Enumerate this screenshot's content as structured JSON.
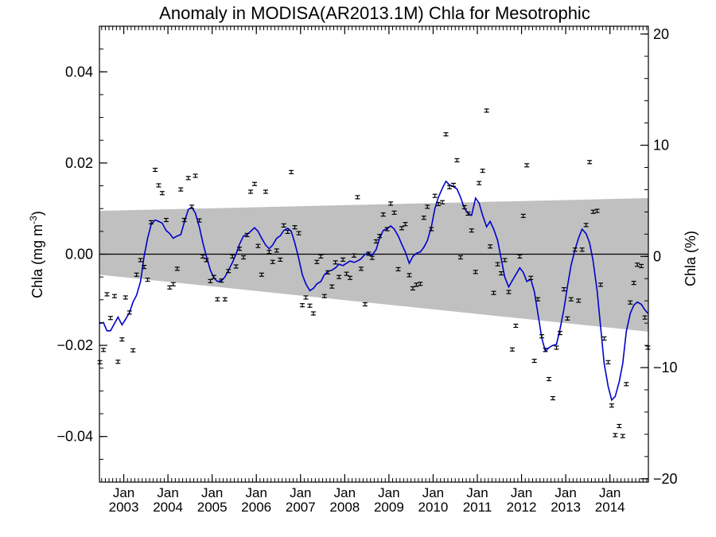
{
  "chart_data": {
    "type": "scatter",
    "title": "Anomaly in MODISA(AR2013.1M) Chla for Mesotrophic",
    "ylabel_main": "Chla (mg m",
    "ylabel_sup": "-3",
    "ylabel_close": ")",
    "ylabel_right": "Chla (%)",
    "ylim": [
      -0.05,
      0.05
    ],
    "ylim_right": [
      -20.3,
      20.7
    ],
    "xlim": [
      2002.45,
      2014.87
    ],
    "yticks": [
      -0.04,
      -0.02,
      0.0,
      0.02,
      0.04
    ],
    "yticks_labels": [
      "−0.04",
      "−0.02",
      "0.00",
      "0.02",
      "0.04"
    ],
    "yticks_right": [
      -20,
      -10,
      0,
      10,
      20
    ],
    "yticks_right_labels": [
      "−20",
      "−10",
      "0",
      "10",
      "20"
    ],
    "xticks": [
      {
        "x": 2003,
        "month": "Jan",
        "year": "2003"
      },
      {
        "x": 2004,
        "month": "Jan",
        "year": "2004"
      },
      {
        "x": 2005,
        "month": "Jan",
        "year": "2005"
      },
      {
        "x": 2006,
        "month": "Jan",
        "year": "2006"
      },
      {
        "x": 2007,
        "month": "Jan",
        "year": "2007"
      },
      {
        "x": 2008,
        "month": "Jan",
        "year": "2008"
      },
      {
        "x": 2009,
        "month": "Jan",
        "year": "2009"
      },
      {
        "x": 2010,
        "month": "Jan",
        "year": "2010"
      },
      {
        "x": 2011,
        "month": "Jan",
        "year": "2011"
      },
      {
        "x": 2012,
        "month": "Jan",
        "year": "2012"
      },
      {
        "x": 2013,
        "month": "Jan",
        "year": "2013"
      },
      {
        "x": 2014,
        "month": "Jan",
        "year": "2014"
      }
    ],
    "band": {
      "upper": [
        [
          2002.45,
          0.0095
        ],
        [
          2014.87,
          0.0123
        ]
      ],
      "lower": [
        [
          2002.45,
          -0.0045
        ],
        [
          2014.87,
          -0.017
        ]
      ],
      "color": "#c0c0c0"
    },
    "zero_line": 0,
    "points_color": "#000000",
    "line_color": "#0000cc",
    "points": [
      [
        2002.46,
        -0.0237
      ],
      [
        2002.54,
        -0.021
      ],
      [
        2002.62,
        -0.0088
      ],
      [
        2002.7,
        -0.014
      ],
      [
        2002.79,
        -0.0092
      ],
      [
        2002.87,
        -0.0236
      ],
      [
        2002.96,
        -0.0187
      ],
      [
        2003.04,
        -0.0095
      ],
      [
        2003.13,
        -0.0128
      ],
      [
        2003.21,
        -0.0211
      ],
      [
        2003.29,
        -0.0045
      ],
      [
        2003.38,
        -0.0013
      ],
      [
        2003.46,
        -0.0028
      ],
      [
        2003.54,
        -0.0056
      ],
      [
        2003.62,
        0.007
      ],
      [
        2003.71,
        0.0185
      ],
      [
        2003.79,
        0.0151
      ],
      [
        2003.87,
        0.0134
      ],
      [
        2003.96,
        0.0075
      ],
      [
        2004.04,
        -0.0073
      ],
      [
        2004.12,
        -0.0066
      ],
      [
        2004.21,
        -0.0032
      ],
      [
        2004.29,
        0.0142
      ],
      [
        2004.37,
        0.0075
      ],
      [
        2004.46,
        0.0167
      ],
      [
        2004.54,
        0.0104
      ],
      [
        2004.62,
        0.0172
      ],
      [
        2004.71,
        0.0074
      ],
      [
        2004.79,
        -0.0005
      ],
      [
        2004.87,
        -0.0013
      ],
      [
        2004.96,
        -0.0059
      ],
      [
        2005.04,
        -0.005
      ],
      [
        2005.12,
        -0.0099
      ],
      [
        2005.21,
        -0.0058
      ],
      [
        2005.29,
        -0.0099
      ],
      [
        2005.37,
        -0.0037
      ],
      [
        2005.46,
        -0.0005
      ],
      [
        2005.54,
        -0.0027
      ],
      [
        2005.62,
        0.0012
      ],
      [
        2005.71,
        -0.0007
      ],
      [
        2005.79,
        0.0042
      ],
      [
        2005.87,
        0.0137
      ],
      [
        2005.96,
        0.0154
      ],
      [
        2006.04,
        0.0018
      ],
      [
        2006.12,
        -0.0045
      ],
      [
        2006.21,
        0.0137
      ],
      [
        2006.29,
        0.0005
      ],
      [
        2006.37,
        -0.0017
      ],
      [
        2006.46,
        0.0008
      ],
      [
        2006.54,
        -0.0012
      ],
      [
        2006.62,
        0.0063
      ],
      [
        2006.71,
        0.0049
      ],
      [
        2006.79,
        0.018
      ],
      [
        2006.87,
        0.0059
      ],
      [
        2006.96,
        0.0046
      ],
      [
        2007.04,
        -0.0112
      ],
      [
        2007.12,
        -0.0095
      ],
      [
        2007.21,
        -0.0113
      ],
      [
        2007.29,
        -0.013
      ],
      [
        2007.37,
        -0.0017
      ],
      [
        2007.46,
        -0.0005
      ],
      [
        2007.54,
        -0.0092
      ],
      [
        2007.62,
        -0.004
      ],
      [
        2007.71,
        -0.0071
      ],
      [
        2007.79,
        -0.0018
      ],
      [
        2007.87,
        -0.005
      ],
      [
        2007.96,
        -0.0012
      ],
      [
        2008.04,
        -0.0043
      ],
      [
        2008.12,
        -0.0052
      ],
      [
        2008.21,
        -0.0003
      ],
      [
        2008.29,
        0.0125
      ],
      [
        2008.37,
        -0.0032
      ],
      [
        2008.46,
        -0.011
      ],
      [
        2008.54,
        0.0001
      ],
      [
        2008.62,
        -0.0008
      ],
      [
        2008.71,
        0.0028
      ],
      [
        2008.79,
        0.004
      ],
      [
        2008.87,
        0.0087
      ],
      [
        2008.96,
        0.0055
      ],
      [
        2009.04,
        0.0111
      ],
      [
        2009.12,
        0.0091
      ],
      [
        2009.21,
        -0.0033
      ],
      [
        2009.29,
        0.0057
      ],
      [
        2009.37,
        0.0066
      ],
      [
        2009.46,
        -0.0046
      ],
      [
        2009.54,
        -0.0075
      ],
      [
        2009.62,
        -0.0067
      ],
      [
        2009.71,
        -0.0065
      ],
      [
        2009.79,
        0.008
      ],
      [
        2009.87,
        0.0104
      ],
      [
        2009.96,
        0.0055
      ],
      [
        2010.04,
        0.0128
      ],
      [
        2010.12,
        0.011
      ],
      [
        2010.21,
        0.0114
      ],
      [
        2010.29,
        0.0263
      ],
      [
        2010.37,
        0.0147
      ],
      [
        2010.46,
        0.0152
      ],
      [
        2010.54,
        0.0206
      ],
      [
        2010.62,
        -0.0007
      ],
      [
        2010.71,
        0.0103
      ],
      [
        2010.79,
        0.0089
      ],
      [
        2010.87,
        0.0052
      ],
      [
        2010.96,
        -0.0039
      ],
      [
        2011.04,
        0.0156
      ],
      [
        2011.12,
        0.0183
      ],
      [
        2011.21,
        0.0315
      ],
      [
        2011.29,
        0.0017
      ],
      [
        2011.37,
        -0.0085
      ],
      [
        2011.46,
        -0.0022
      ],
      [
        2011.54,
        -0.0042
      ],
      [
        2011.62,
        -0.0013
      ],
      [
        2011.71,
        -0.0083
      ],
      [
        2011.79,
        -0.0209
      ],
      [
        2011.87,
        -0.0157
      ],
      [
        2011.96,
        -0.0005
      ],
      [
        2012.04,
        0.0084
      ],
      [
        2012.12,
        0.0195
      ],
      [
        2012.21,
        -0.0052
      ],
      [
        2012.29,
        -0.0234
      ],
      [
        2012.37,
        -0.0099
      ],
      [
        2012.46,
        -0.018
      ],
      [
        2012.54,
        -0.021
      ],
      [
        2012.62,
        -0.0274
      ],
      [
        2012.71,
        -0.0316
      ],
      [
        2012.79,
        -0.0205
      ],
      [
        2012.87,
        -0.0173
      ],
      [
        2012.96,
        -0.0077
      ],
      [
        2013.04,
        -0.0141
      ],
      [
        2013.12,
        -0.0099
      ],
      [
        2013.21,
        0.001
      ],
      [
        2013.29,
        -0.0102
      ],
      [
        2013.37,
        0.001
      ],
      [
        2013.46,
        0.0064
      ],
      [
        2013.54,
        0.0202
      ],
      [
        2013.62,
        0.0093
      ],
      [
        2013.71,
        0.0095
      ],
      [
        2013.79,
        -0.0067
      ],
      [
        2013.87,
        -0.0185
      ],
      [
        2013.96,
        -0.0237
      ],
      [
        2014.04,
        -0.0332
      ],
      [
        2014.12,
        -0.0397
      ],
      [
        2014.21,
        -0.0377
      ],
      [
        2014.29,
        -0.0399
      ],
      [
        2014.37,
        -0.0285
      ],
      [
        2014.46,
        -0.0106
      ],
      [
        2014.54,
        -0.0063
      ],
      [
        2014.62,
        -0.0023
      ],
      [
        2014.71,
        -0.0026
      ],
      [
        2014.79,
        -0.0139
      ],
      [
        2014.86,
        -0.0205
      ]
    ],
    "trend_line": [
      [
        2002.45,
        -0.0152
      ],
      [
        2002.54,
        -0.015
      ],
      [
        2002.62,
        -0.0168
      ],
      [
        2002.7,
        -0.0168
      ],
      [
        2002.79,
        -0.0152
      ],
      [
        2002.87,
        -0.0138
      ],
      [
        2002.96,
        -0.0155
      ],
      [
        2003.04,
        -0.0143
      ],
      [
        2003.13,
        -0.0128
      ],
      [
        2003.21,
        -0.0105
      ],
      [
        2003.29,
        -0.009
      ],
      [
        2003.38,
        -0.006
      ],
      [
        2003.46,
        -0.0005
      ],
      [
        2003.54,
        0.0035
      ],
      [
        2003.62,
        0.0065
      ],
      [
        2003.71,
        0.0075
      ],
      [
        2003.79,
        0.0072
      ],
      [
        2003.87,
        0.0068
      ],
      [
        2003.96,
        0.0052
      ],
      [
        2004.04,
        0.0045
      ],
      [
        2004.12,
        0.0035
      ],
      [
        2004.21,
        0.004
      ],
      [
        2004.29,
        0.0043
      ],
      [
        2004.37,
        0.007
      ],
      [
        2004.46,
        0.0098
      ],
      [
        2004.54,
        0.0103
      ],
      [
        2004.62,
        0.009
      ],
      [
        2004.71,
        0.006
      ],
      [
        2004.79,
        0.0025
      ],
      [
        2004.87,
        -0.0005
      ],
      [
        2004.96,
        -0.0035
      ],
      [
        2005.04,
        -0.0052
      ],
      [
        2005.12,
        -0.006
      ],
      [
        2005.21,
        -0.0058
      ],
      [
        2005.29,
        -0.005
      ],
      [
        2005.37,
        -0.0035
      ],
      [
        2005.46,
        -0.0018
      ],
      [
        2005.54,
        0.0
      ],
      [
        2005.62,
        0.0022
      ],
      [
        2005.71,
        0.004
      ],
      [
        2005.79,
        0.0043
      ],
      [
        2005.87,
        0.005
      ],
      [
        2005.96,
        0.0058
      ],
      [
        2006.04,
        0.005
      ],
      [
        2006.12,
        0.0035
      ],
      [
        2006.21,
        0.002
      ],
      [
        2006.29,
        0.0012
      ],
      [
        2006.37,
        0.002
      ],
      [
        2006.46,
        0.0035
      ],
      [
        2006.54,
        0.004
      ],
      [
        2006.62,
        0.0052
      ],
      [
        2006.71,
        0.0057
      ],
      [
        2006.79,
        0.005
      ],
      [
        2006.87,
        0.0025
      ],
      [
        2006.96,
        -0.001
      ],
      [
        2007.04,
        -0.0045
      ],
      [
        2007.12,
        -0.0065
      ],
      [
        2007.21,
        -0.008
      ],
      [
        2007.29,
        -0.0075
      ],
      [
        2007.37,
        -0.0065
      ],
      [
        2007.46,
        -0.006
      ],
      [
        2007.54,
        -0.0045
      ],
      [
        2007.62,
        -0.0038
      ],
      [
        2007.71,
        -0.0035
      ],
      [
        2007.79,
        -0.003
      ],
      [
        2007.87,
        -0.0022
      ],
      [
        2007.96,
        -0.0025
      ],
      [
        2008.04,
        -0.002
      ],
      [
        2008.12,
        -0.0015
      ],
      [
        2008.21,
        -0.0018
      ],
      [
        2008.29,
        -0.0015
      ],
      [
        2008.37,
        -0.001
      ],
      [
        2008.46,
        0.0
      ],
      [
        2008.54,
        0.0002
      ],
      [
        2008.62,
        -0.0002
      ],
      [
        2008.71,
        0.001
      ],
      [
        2008.79,
        0.0035
      ],
      [
        2008.87,
        0.0052
      ],
      [
        2008.96,
        0.0056
      ],
      [
        2009.04,
        0.0062
      ],
      [
        2009.12,
        0.0055
      ],
      [
        2009.21,
        0.004
      ],
      [
        2009.29,
        0.0022
      ],
      [
        2009.37,
        0.0005
      ],
      [
        2009.46,
        -0.002
      ],
      [
        2009.54,
        -0.0005
      ],
      [
        2009.62,
        0.0002
      ],
      [
        2009.71,
        0.0005
      ],
      [
        2009.79,
        0.0015
      ],
      [
        2009.87,
        0.003
      ],
      [
        2009.96,
        0.006
      ],
      [
        2010.04,
        0.01
      ],
      [
        2010.12,
        0.0125
      ],
      [
        2010.21,
        0.0145
      ],
      [
        2010.29,
        0.016
      ],
      [
        2010.37,
        0.0152
      ],
      [
        2010.46,
        0.0148
      ],
      [
        2010.54,
        0.0143
      ],
      [
        2010.62,
        0.0125
      ],
      [
        2010.71,
        0.01
      ],
      [
        2010.79,
        0.009
      ],
      [
        2010.87,
        0.0085
      ],
      [
        2010.96,
        0.0123
      ],
      [
        2011.04,
        0.0112
      ],
      [
        2011.12,
        0.0085
      ],
      [
        2011.21,
        0.006
      ],
      [
        2011.29,
        0.0072
      ],
      [
        2011.37,
        0.0055
      ],
      [
        2011.46,
        0.003
      ],
      [
        2011.54,
        -0.001
      ],
      [
        2011.62,
        -0.005
      ],
      [
        2011.71,
        -0.0072
      ],
      [
        2011.79,
        -0.0058
      ],
      [
        2011.87,
        -0.0045
      ],
      [
        2011.96,
        -0.003
      ],
      [
        2012.04,
        -0.004
      ],
      [
        2012.12,
        -0.006
      ],
      [
        2012.21,
        -0.0055
      ],
      [
        2012.29,
        -0.0082
      ],
      [
        2012.37,
        -0.013
      ],
      [
        2012.46,
        -0.0185
      ],
      [
        2012.54,
        -0.0213
      ],
      [
        2012.62,
        -0.0205
      ],
      [
        2012.71,
        -0.02
      ],
      [
        2012.79,
        -0.0198
      ],
      [
        2012.87,
        -0.0165
      ],
      [
        2012.96,
        -0.012
      ],
      [
        2013.04,
        -0.007
      ],
      [
        2013.12,
        -0.0025
      ],
      [
        2013.21,
        0.001
      ],
      [
        2013.29,
        0.0035
      ],
      [
        2013.37,
        0.0055
      ],
      [
        2013.46,
        0.0045
      ],
      [
        2013.54,
        0.0025
      ],
      [
        2013.62,
        -0.0015
      ],
      [
        2013.71,
        -0.008
      ],
      [
        2013.79,
        -0.016
      ],
      [
        2013.87,
        -0.024
      ],
      [
        2013.96,
        -0.029
      ],
      [
        2014.04,
        -0.032
      ],
      [
        2014.12,
        -0.0312
      ],
      [
        2014.21,
        -0.028
      ],
      [
        2014.29,
        -0.024
      ],
      [
        2014.37,
        -0.017
      ],
      [
        2014.46,
        -0.013
      ],
      [
        2014.54,
        -0.0112
      ],
      [
        2014.62,
        -0.0105
      ],
      [
        2014.71,
        -0.011
      ],
      [
        2014.79,
        -0.0122
      ],
      [
        2014.86,
        -0.013
      ]
    ]
  }
}
